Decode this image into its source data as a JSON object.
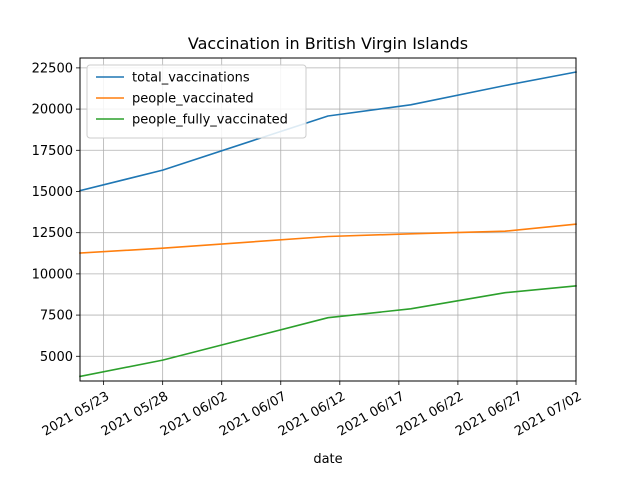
{
  "chart_data": {
    "type": "line",
    "title": "Vaccination in British Virgin Islands",
    "xlabel": "date",
    "ylabel": "",
    "grid": true,
    "legend_position": "top-left",
    "xlim": [
      "2021-05-21",
      "2021-07-02"
    ],
    "ylim": [
      3500,
      23100
    ],
    "x_ticks": [
      {
        "date": "2021-05-23",
        "label": "2021 05/23"
      },
      {
        "date": "2021-05-28",
        "label": "2021 05/28"
      },
      {
        "date": "2021-06-02",
        "label": "2021 06/02"
      },
      {
        "date": "2021-06-07",
        "label": "2021 06/07"
      },
      {
        "date": "2021-06-12",
        "label": "2021 06/12"
      },
      {
        "date": "2021-06-17",
        "label": "2021 06/17"
      },
      {
        "date": "2021-06-22",
        "label": "2021 06/22"
      },
      {
        "date": "2021-06-27",
        "label": "2021 06/27"
      },
      {
        "date": "2021-07-02",
        "label": "2021 07/02"
      }
    ],
    "y_ticks": [
      {
        "value": 5000,
        "label": "5000"
      },
      {
        "value": 7500,
        "label": "7500"
      },
      {
        "value": 10000,
        "label": "10000"
      },
      {
        "value": 12500,
        "label": "12500"
      },
      {
        "value": 15000,
        "label": "15000"
      },
      {
        "value": 17500,
        "label": "17500"
      },
      {
        "value": 20000,
        "label": "20000"
      },
      {
        "value": 22500,
        "label": "22500"
      }
    ],
    "series": [
      {
        "name": "total_vaccinations",
        "color": "#1f77b4",
        "points": [
          {
            "x": "2021-05-21",
            "y": 15050
          },
          {
            "x": "2021-05-28",
            "y": 16300
          },
          {
            "x": "2021-06-11",
            "y": 19580
          },
          {
            "x": "2021-06-18",
            "y": 20260
          },
          {
            "x": "2021-06-26",
            "y": 21430
          },
          {
            "x": "2021-07-02",
            "y": 22250
          }
        ]
      },
      {
        "name": "people_vaccinated",
        "color": "#ff7f0e",
        "points": [
          {
            "x": "2021-05-21",
            "y": 11270
          },
          {
            "x": "2021-05-28",
            "y": 11560
          },
          {
            "x": "2021-06-11",
            "y": 12270
          },
          {
            "x": "2021-06-18",
            "y": 12430
          },
          {
            "x": "2021-06-26",
            "y": 12590
          },
          {
            "x": "2021-07-02",
            "y": 13020
          }
        ]
      },
      {
        "name": "people_fully_vaccinated",
        "color": "#2ca02c",
        "points": [
          {
            "x": "2021-05-21",
            "y": 3780
          },
          {
            "x": "2021-05-28",
            "y": 4770
          },
          {
            "x": "2021-06-11",
            "y": 7340
          },
          {
            "x": "2021-06-18",
            "y": 7880
          },
          {
            "x": "2021-06-26",
            "y": 8860
          },
          {
            "x": "2021-07-02",
            "y": 9270
          }
        ]
      }
    ]
  }
}
